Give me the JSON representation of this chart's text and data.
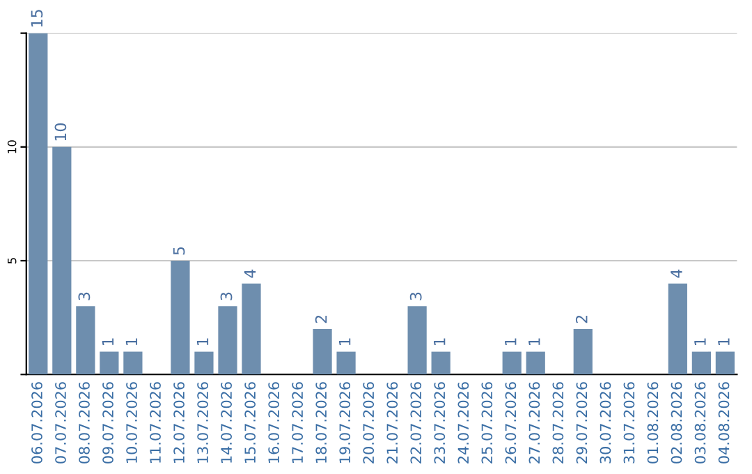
{
  "chart_data": {
    "type": "bar",
    "categories": [
      "06.07.2026",
      "07.07.2026",
      "08.07.2026",
      "09.07.2026",
      "10.07.2026",
      "11.07.2026",
      "12.07.2026",
      "13.07.2026",
      "14.07.2026",
      "15.07.2026",
      "16.07.2026",
      "17.07.2026",
      "18.07.2026",
      "19.07.2026",
      "20.07.2026",
      "21.07.2026",
      "22.07.2026",
      "23.07.2026",
      "24.07.2026",
      "25.07.2026",
      "26.07.2026",
      "27.07.2026",
      "28.07.2026",
      "29.07.2026",
      "30.07.2026",
      "31.07.2026",
      "01.08.2026",
      "02.08.2026",
      "03.08.2026",
      "04.08.2026"
    ],
    "values": [
      15,
      10,
      3,
      1,
      1,
      0,
      5,
      1,
      3,
      4,
      0,
      0,
      2,
      1,
      0,
      0,
      3,
      1,
      0,
      0,
      1,
      1,
      0,
      2,
      0,
      0,
      0,
      4,
      1,
      1
    ],
    "value_labels": [
      "15",
      "10",
      "3",
      "1",
      "1",
      null,
      "5",
      "1",
      "3",
      "4",
      null,
      null,
      "2",
      "1",
      null,
      null,
      "3",
      "1",
      null,
      null,
      "1",
      "1",
      null,
      "2",
      null,
      null,
      null,
      "4",
      "1",
      "1"
    ],
    "color": "#6e8eae",
    "ylim": [
      0,
      15
    ],
    "yticks": [
      {
        "value": 0,
        "label": null
      },
      5,
      10,
      {
        "value": 15,
        "label": null
      }
    ],
    "grid": "y"
  }
}
